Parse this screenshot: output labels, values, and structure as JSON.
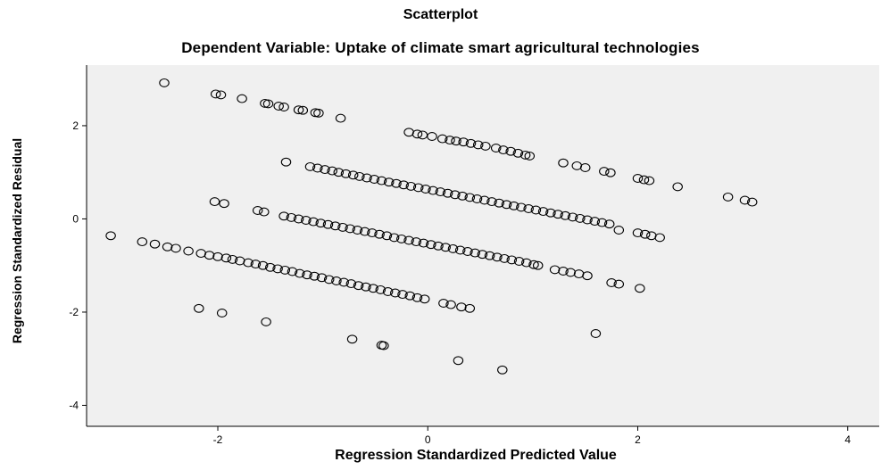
{
  "chart_data": {
    "type": "scatter",
    "title": "Scatterplot",
    "subtitle": "Dependent Variable: Uptake of climate smart agricultural technologies",
    "xlabel": "Regression Standardized Predicted Value",
    "ylabel": "Regression Standardized Residual",
    "xlim": [
      -3.25,
      4.3
    ],
    "ylim": [
      -4.45,
      3.3
    ],
    "xticks": [
      -2,
      0,
      2,
      4
    ],
    "yticks": [
      -4,
      -2,
      0,
      2
    ],
    "grid": false,
    "marker": "open-circle",
    "colors": {
      "plot_background": "#f0f0f0",
      "marker_stroke": "#000000",
      "axis": "#000000"
    },
    "series": [
      {
        "points": [
          [
            -2.51,
            2.92
          ],
          [
            -2.02,
            2.68
          ],
          [
            -1.97,
            2.66
          ],
          [
            -1.77,
            2.58
          ],
          [
            -1.55,
            2.48
          ],
          [
            -1.52,
            2.47
          ],
          [
            -1.42,
            2.42
          ],
          [
            -1.37,
            2.4
          ],
          [
            -1.23,
            2.34
          ],
          [
            -1.19,
            2.33
          ],
          [
            -1.07,
            2.28
          ],
          [
            -1.04,
            2.27
          ],
          [
            -0.83,
            2.16
          ],
          [
            -0.18,
            1.86
          ],
          [
            -0.1,
            1.82
          ],
          [
            -0.05,
            1.8
          ],
          [
            0.04,
            1.77
          ],
          [
            0.14,
            1.72
          ],
          [
            0.21,
            1.69
          ],
          [
            0.27,
            1.67
          ],
          [
            0.34,
            1.65
          ],
          [
            0.41,
            1.62
          ],
          [
            0.48,
            1.59
          ],
          [
            0.55,
            1.56
          ],
          [
            0.65,
            1.52
          ],
          [
            0.72,
            1.48
          ],
          [
            0.79,
            1.45
          ],
          [
            0.86,
            1.41
          ],
          [
            0.93,
            1.37
          ],
          [
            0.97,
            1.35
          ],
          [
            1.29,
            1.2
          ],
          [
            1.42,
            1.14
          ],
          [
            1.5,
            1.1
          ],
          [
            1.68,
            1.02
          ],
          [
            1.74,
            0.99
          ],
          [
            2.0,
            0.87
          ],
          [
            2.06,
            0.84
          ],
          [
            2.11,
            0.82
          ],
          [
            2.38,
            0.69
          ],
          [
            2.86,
            0.47
          ],
          [
            3.02,
            0.4
          ],
          [
            3.09,
            0.36
          ],
          [
            -1.35,
            1.22
          ],
          [
            -1.12,
            1.12
          ],
          [
            -1.05,
            1.09
          ],
          [
            -0.98,
            1.06
          ],
          [
            -0.91,
            1.03
          ],
          [
            -0.85,
            1.0
          ],
          [
            -0.78,
            0.97
          ],
          [
            -0.71,
            0.94
          ],
          [
            -0.65,
            0.91
          ],
          [
            -0.58,
            0.88
          ],
          [
            -0.51,
            0.85
          ],
          [
            -0.44,
            0.82
          ],
          [
            -0.37,
            0.79
          ],
          [
            -0.3,
            0.76
          ],
          [
            -0.23,
            0.73
          ],
          [
            -0.16,
            0.7
          ],
          [
            -0.09,
            0.67
          ],
          [
            -0.02,
            0.64
          ],
          [
            0.05,
            0.61
          ],
          [
            0.12,
            0.58
          ],
          [
            0.19,
            0.55
          ],
          [
            0.26,
            0.52
          ],
          [
            0.33,
            0.49
          ],
          [
            0.4,
            0.46
          ],
          [
            0.47,
            0.43
          ],
          [
            0.54,
            0.4
          ],
          [
            0.61,
            0.37
          ],
          [
            0.68,
            0.34
          ],
          [
            0.75,
            0.31
          ],
          [
            0.82,
            0.28
          ],
          [
            0.89,
            0.25
          ],
          [
            0.96,
            0.22
          ],
          [
            1.03,
            0.19
          ],
          [
            1.1,
            0.16
          ],
          [
            1.17,
            0.13
          ],
          [
            1.24,
            0.1
          ],
          [
            1.31,
            0.07
          ],
          [
            1.38,
            0.04
          ],
          [
            1.45,
            0.01
          ],
          [
            1.52,
            -0.02
          ],
          [
            1.59,
            -0.05
          ],
          [
            1.66,
            -0.08
          ],
          [
            1.73,
            -0.11
          ],
          [
            1.82,
            -0.24
          ],
          [
            2.0,
            -0.3
          ],
          [
            2.07,
            -0.33
          ],
          [
            2.13,
            -0.36
          ],
          [
            2.21,
            -0.4
          ],
          [
            -2.03,
            0.37
          ],
          [
            -1.94,
            0.33
          ],
          [
            -1.62,
            0.18
          ],
          [
            -1.56,
            0.15
          ],
          [
            -1.37,
            0.06
          ],
          [
            -1.3,
            0.03
          ],
          [
            -1.23,
            0.0
          ],
          [
            -1.16,
            -0.03
          ],
          [
            -1.09,
            -0.06
          ],
          [
            -1.02,
            -0.09
          ],
          [
            -0.95,
            -0.12
          ],
          [
            -0.88,
            -0.15
          ],
          [
            -0.81,
            -0.18
          ],
          [
            -0.74,
            -0.21
          ],
          [
            -0.67,
            -0.24
          ],
          [
            -0.6,
            -0.27
          ],
          [
            -0.53,
            -0.3
          ],
          [
            -0.46,
            -0.33
          ],
          [
            -0.39,
            -0.36
          ],
          [
            -0.32,
            -0.4
          ],
          [
            -0.25,
            -0.43
          ],
          [
            -0.18,
            -0.46
          ],
          [
            -0.11,
            -0.49
          ],
          [
            -0.04,
            -0.52
          ],
          [
            0.03,
            -0.55
          ],
          [
            0.1,
            -0.58
          ],
          [
            0.17,
            -0.61
          ],
          [
            0.24,
            -0.64
          ],
          [
            0.31,
            -0.67
          ],
          [
            0.38,
            -0.7
          ],
          [
            0.45,
            -0.73
          ],
          [
            0.52,
            -0.76
          ],
          [
            0.59,
            -0.79
          ],
          [
            0.66,
            -0.82
          ],
          [
            0.73,
            -0.85
          ],
          [
            0.8,
            -0.88
          ],
          [
            0.87,
            -0.91
          ],
          [
            0.94,
            -0.94
          ],
          [
            1.01,
            -0.98
          ],
          [
            1.05,
            -1.0
          ],
          [
            1.21,
            -1.09
          ],
          [
            1.29,
            -1.12
          ],
          [
            1.36,
            -1.15
          ],
          [
            1.44,
            -1.18
          ],
          [
            1.52,
            -1.22
          ],
          [
            1.75,
            -1.37
          ],
          [
            1.82,
            -1.4
          ],
          [
            2.02,
            -1.49
          ],
          [
            -3.02,
            -0.36
          ],
          [
            -2.72,
            -0.49
          ],
          [
            -2.6,
            -0.54
          ],
          [
            -2.48,
            -0.6
          ],
          [
            -2.4,
            -0.63
          ],
          [
            -2.28,
            -0.69
          ],
          [
            -2.16,
            -0.74
          ],
          [
            -2.08,
            -0.78
          ],
          [
            -2.0,
            -0.81
          ],
          [
            -1.92,
            -0.84
          ],
          [
            -1.86,
            -0.87
          ],
          [
            -1.79,
            -0.9
          ],
          [
            -1.71,
            -0.94
          ],
          [
            -1.64,
            -0.97
          ],
          [
            -1.57,
            -1.0
          ],
          [
            -1.5,
            -1.04
          ],
          [
            -1.43,
            -1.07
          ],
          [
            -1.36,
            -1.1
          ],
          [
            -1.29,
            -1.13
          ],
          [
            -1.22,
            -1.17
          ],
          [
            -1.15,
            -1.2
          ],
          [
            -1.08,
            -1.23
          ],
          [
            -1.01,
            -1.26
          ],
          [
            -0.94,
            -1.3
          ],
          [
            -0.87,
            -1.33
          ],
          [
            -0.8,
            -1.36
          ],
          [
            -0.73,
            -1.39
          ],
          [
            -0.66,
            -1.43
          ],
          [
            -0.59,
            -1.46
          ],
          [
            -0.52,
            -1.49
          ],
          [
            -0.45,
            -1.52
          ],
          [
            -0.38,
            -1.56
          ],
          [
            -0.31,
            -1.59
          ],
          [
            -0.24,
            -1.62
          ],
          [
            -0.17,
            -1.65
          ],
          [
            -0.1,
            -1.69
          ],
          [
            -0.03,
            -1.72
          ],
          [
            0.15,
            -1.81
          ],
          [
            0.22,
            -1.84
          ],
          [
            0.32,
            -1.89
          ],
          [
            0.4,
            -1.92
          ],
          [
            -2.18,
            -1.92
          ],
          [
            -1.96,
            -2.02
          ],
          [
            -1.54,
            -2.21
          ],
          [
            -0.72,
            -2.58
          ],
          [
            -0.44,
            -2.71
          ],
          [
            -0.42,
            -2.72
          ],
          [
            0.29,
            -3.04
          ],
          [
            0.71,
            -3.24
          ],
          [
            1.6,
            -2.46
          ]
        ]
      }
    ]
  }
}
